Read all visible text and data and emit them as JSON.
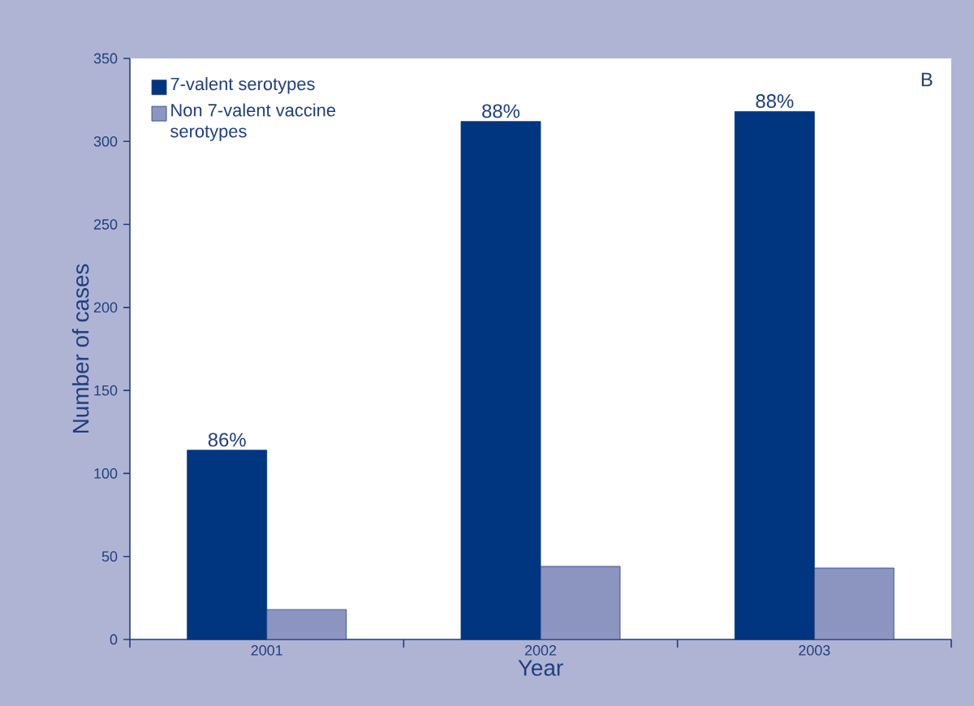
{
  "chart_data": {
    "type": "bar",
    "xlabel": "Year",
    "ylabel": "Number of cases",
    "categories": [
      "2001",
      "2002",
      "2003"
    ],
    "series": [
      {
        "name": "7-valent serotypes",
        "color": "#003580",
        "values": [
          114,
          312,
          318
        ]
      },
      {
        "name": "Non 7-valent vaccine serotypes",
        "color": "#8c94c0",
        "values": [
          18,
          44,
          43
        ]
      }
    ],
    "ylim": [
      0,
      350
    ],
    "yticks": [
      0,
      50,
      100,
      150,
      200,
      250,
      300,
      350
    ],
    "legend": "top left",
    "annotations": [
      "B",
      {
        "text": "86%",
        "x": "2001",
        "y": 114
      },
      {
        "text": "88%",
        "x": "2002",
        "y": 312
      },
      {
        "text": "88%",
        "x": "2003",
        "y": 318
      }
    ]
  }
}
